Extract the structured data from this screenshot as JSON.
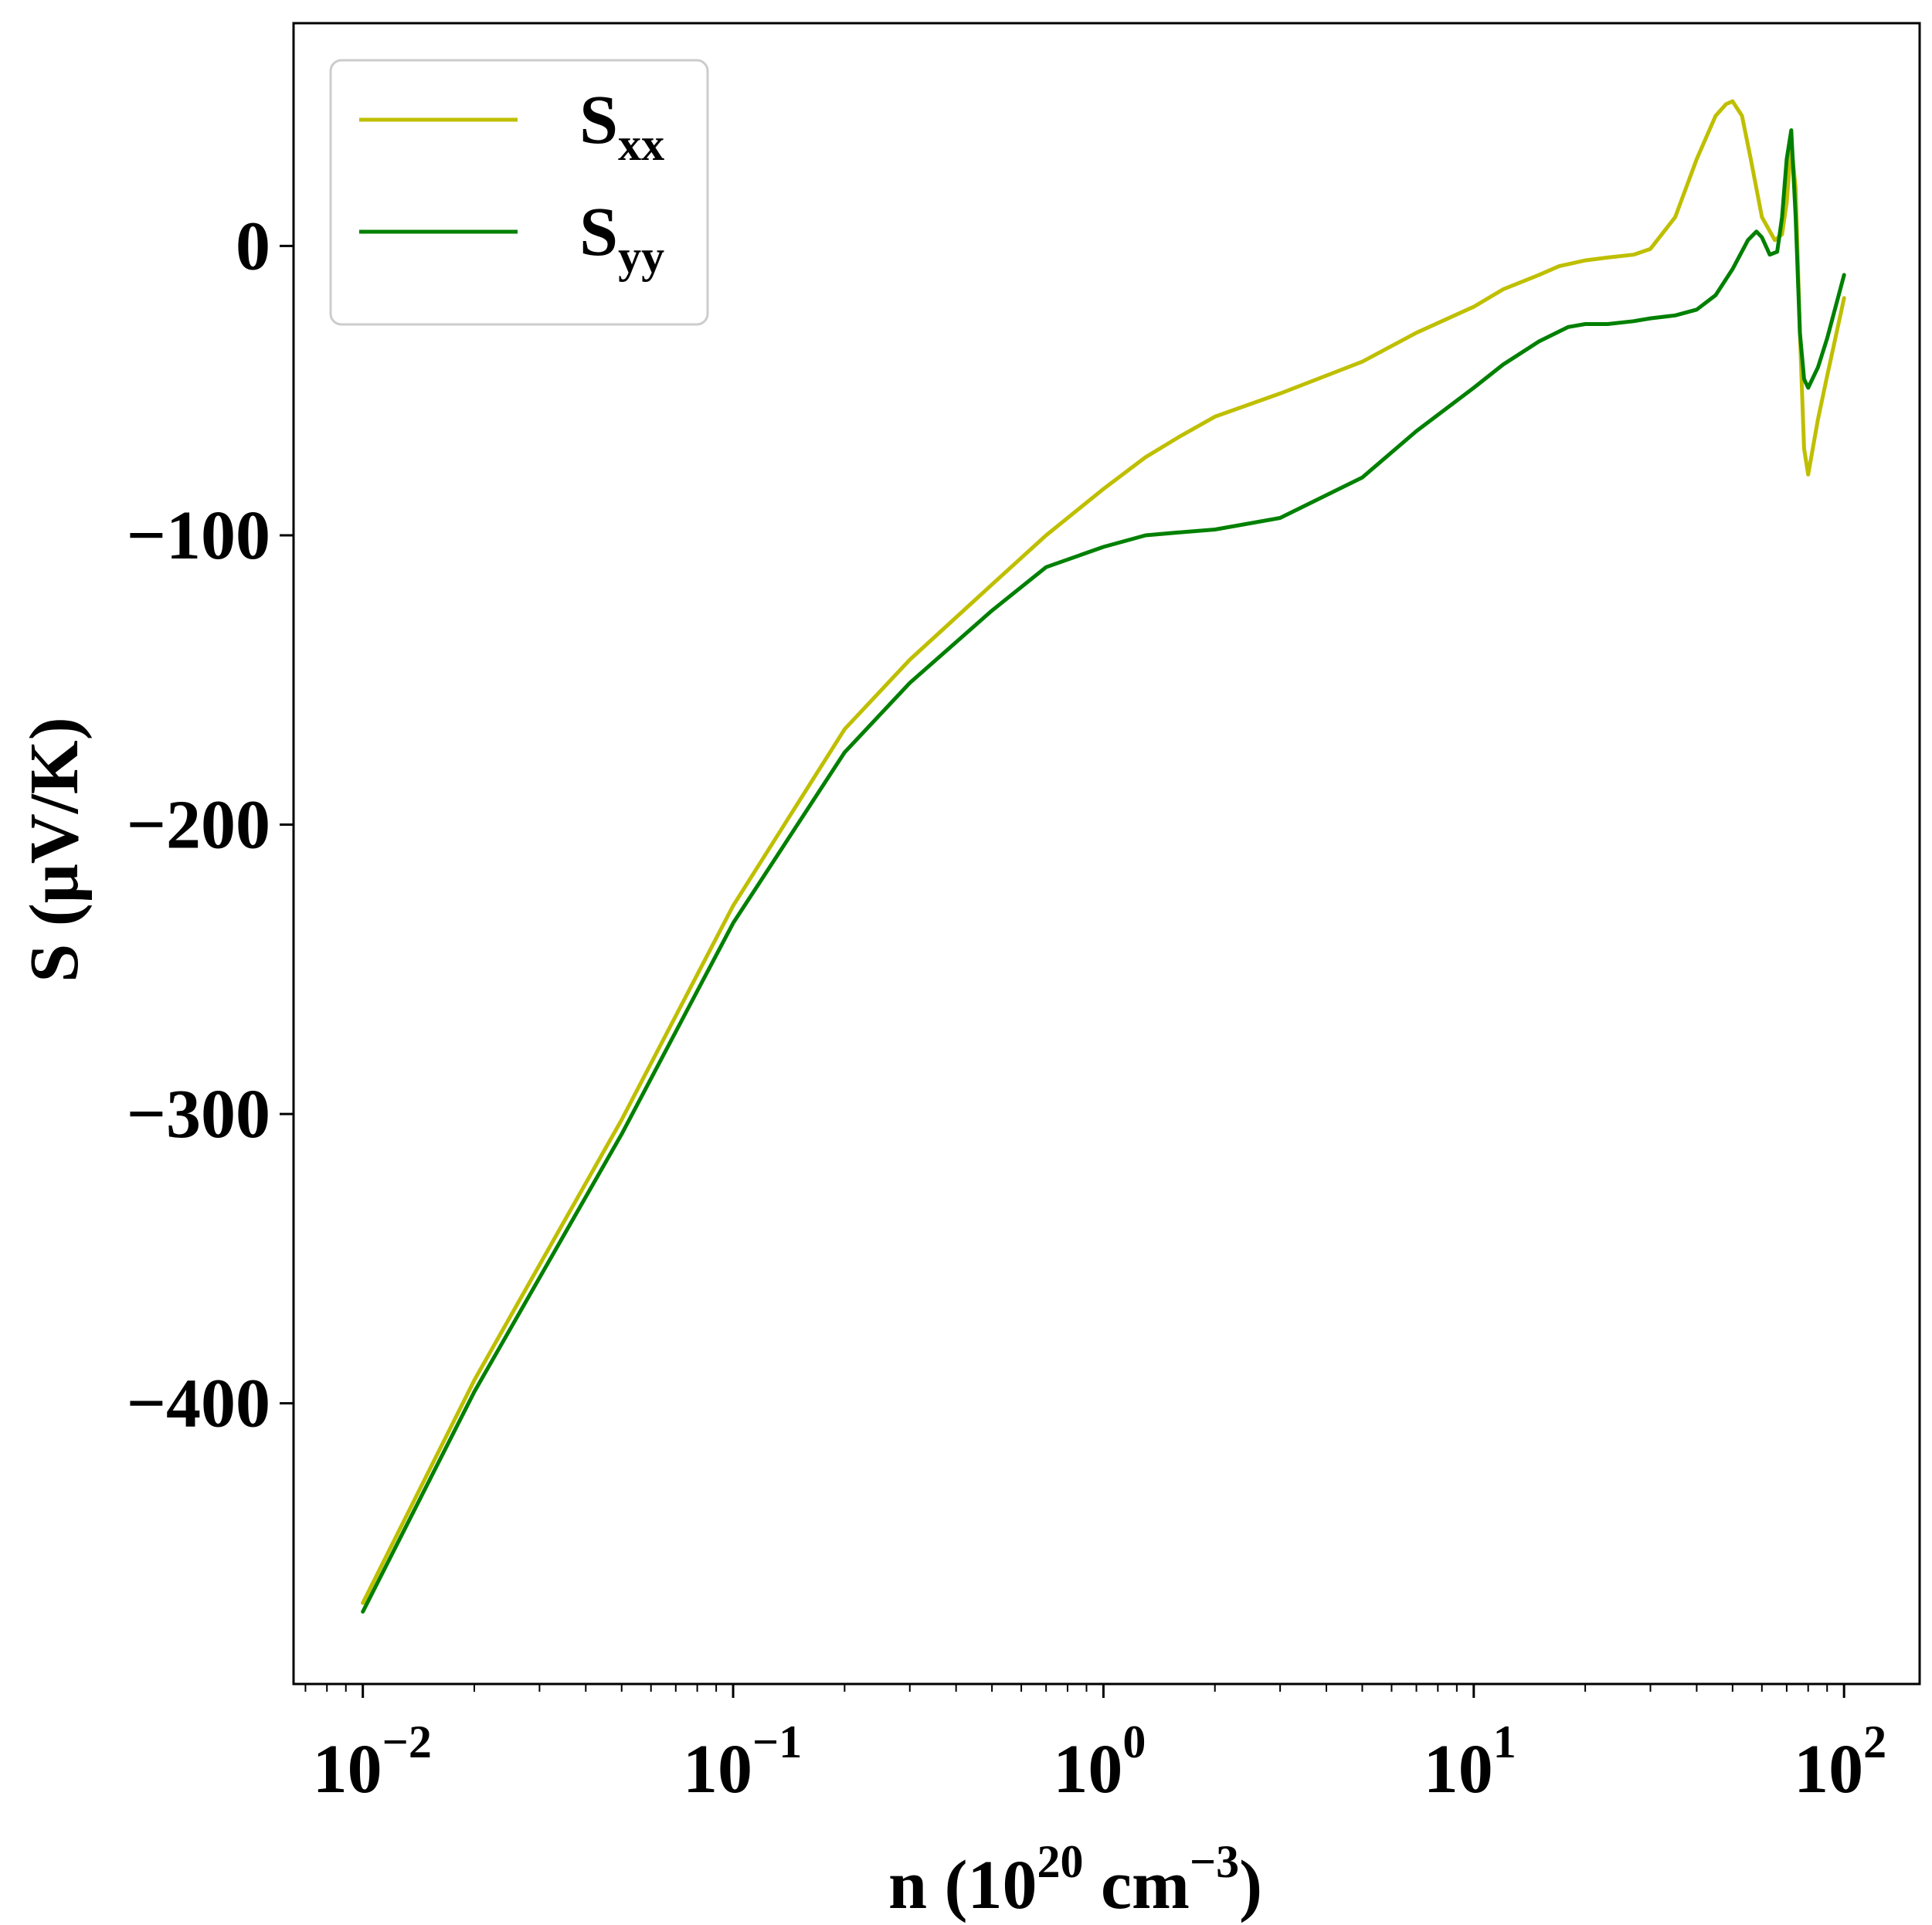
{
  "chart_data": {
    "type": "line",
    "title": "",
    "xlabel": {
      "prefix": "n (10",
      "sup1": "20",
      "middle": " cm",
      "sup2": "−3",
      "suffix": ")"
    },
    "ylabel": "S (μV/K)",
    "xscale": "log",
    "xlim": [
      0.0065,
      160
    ],
    "ylim": [
      -497,
      77
    ],
    "x_ticks": [
      {
        "value": 0.01,
        "base": "10",
        "exp": "−2"
      },
      {
        "value": 0.1,
        "base": "10",
        "exp": "−1"
      },
      {
        "value": 1,
        "base": "10",
        "exp": "0"
      },
      {
        "value": 10,
        "base": "10",
        "exp": "1"
      },
      {
        "value": 100,
        "base": "10",
        "exp": "2"
      }
    ],
    "y_ticks": [
      {
        "value": 0,
        "label": "0"
      },
      {
        "value": -100,
        "label": "−100"
      },
      {
        "value": -200,
        "label": "−200"
      },
      {
        "value": -300,
        "label": "−300"
      },
      {
        "value": -400,
        "label": "−400"
      }
    ],
    "legend": {
      "position": "top-left"
    },
    "colors": {
      "Sxx": "#bfbf00",
      "Syy": "#008000"
    },
    "series": [
      {
        "name": "Sxx",
        "label_main": "S",
        "label_sub": "xx",
        "color": "#bfbf00",
        "x": [
          0.01,
          0.02,
          0.05,
          0.1,
          0.2,
          0.3,
          0.5,
          0.7,
          1.0,
          1.3,
          1.6,
          2.0,
          3.0,
          5.0,
          7.0,
          10,
          12,
          15,
          17,
          20,
          23,
          27,
          30,
          35,
          40,
          45,
          48,
          50,
          53,
          56,
          60,
          65,
          68,
          70,
          72,
          74,
          76,
          78,
          80,
          85,
          90,
          100
        ],
        "y": [
          -469,
          -392,
          -302,
          -228,
          -167,
          -143,
          -117,
          -100,
          -84,
          -73,
          -66,
          -59,
          -51,
          -40,
          -30,
          -21,
          -15,
          -10,
          -7,
          -5,
          -4,
          -3,
          -1,
          10,
          30,
          45,
          49,
          50,
          45,
          30,
          10,
          2,
          4,
          15,
          35,
          20,
          -30,
          -70,
          -79,
          -60,
          -45,
          -18
        ]
      },
      {
        "name": "Syy",
        "label_main": "S",
        "label_sub": "yy",
        "color": "#008000",
        "x": [
          0.01,
          0.02,
          0.05,
          0.1,
          0.2,
          0.3,
          0.5,
          0.7,
          1.0,
          1.3,
          1.6,
          2.0,
          3.0,
          5.0,
          7.0,
          10,
          12,
          15,
          18,
          20,
          23,
          27,
          30,
          35,
          40,
          45,
          50,
          55,
          58,
          60,
          63,
          66,
          68,
          70,
          72,
          74,
          76,
          78,
          80,
          85,
          90,
          100
        ],
        "y": [
          -472,
          -396,
          -307,
          -234,
          -175,
          -151,
          -126,
          -111,
          -104,
          -100,
          -99,
          -98,
          -94,
          -80,
          -64,
          -49,
          -41,
          -33,
          -28,
          -27,
          -27,
          -26,
          -25,
          -24,
          -22,
          -17,
          -8,
          2,
          5,
          3,
          -3,
          -2,
          10,
          30,
          40,
          10,
          -30,
          -46,
          -49,
          -42,
          -32,
          -10
        ]
      }
    ]
  }
}
